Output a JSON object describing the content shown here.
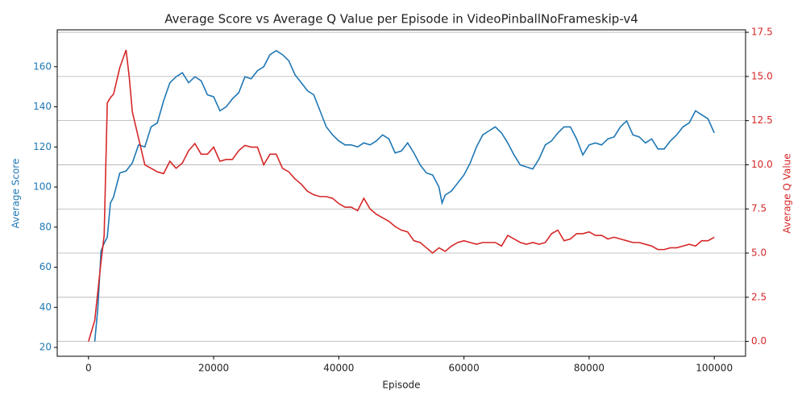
{
  "chart_data": {
    "type": "line",
    "title": "Average Score vs Average Q Value per Episode in VideoPinballNoFrameskip-v4",
    "x_label": "Episode",
    "y_label": "Average Score",
    "y2_label": "Average Q Value",
    "xlim": [
      -5000,
      105000
    ],
    "xticks": [
      0,
      20000,
      40000,
      60000,
      80000,
      100000
    ],
    "ylim": [
      15.6,
      178.4
    ],
    "yticks": [
      20,
      40,
      60,
      80,
      100,
      120,
      140,
      160
    ],
    "y2lim": [
      -0.84,
      17.64
    ],
    "y2ticks": [
      {
        "value": 0,
        "label": "0.0"
      },
      2.5,
      {
        "value": 5,
        "label": "5.0"
      },
      7.5,
      {
        "value": 10,
        "label": "10.0"
      },
      12.5,
      {
        "value": 15,
        "label": "15.0"
      },
      17.5
    ],
    "grid_axis": "y2",
    "series": [
      {
        "name": "Average Score",
        "color": "#1f77b4",
        "x": [
          1000,
          1500,
          2000,
          2500,
          3000,
          3500,
          4000,
          5000,
          6000,
          7000,
          8000,
          9000,
          10000,
          11000,
          12000,
          13000,
          14000,
          15000,
          16000,
          17000,
          18000,
          19000,
          20000,
          21000,
          22000,
          23000,
          24000,
          25000,
          26000,
          27000,
          28000,
          29000,
          30000,
          31000,
          32000,
          33000,
          34000,
          35000,
          36000,
          37000,
          38000,
          39000,
          40000,
          41000,
          42000,
          43000,
          44000,
          45000,
          46000,
          47000,
          48000,
          49000,
          50000,
          51000,
          52000,
          53000,
          54000,
          55000,
          56000,
          56500,
          57000,
          58000,
          59000,
          60000,
          61000,
          62000,
          63000,
          64000,
          65000,
          66000,
          67000,
          68000,
          69000,
          70000,
          71000,
          72000,
          73000,
          74000,
          75000,
          76000,
          77000,
          78000,
          79000,
          80000,
          81000,
          82000,
          83000,
          84000,
          85000,
          86000,
          87000,
          88000,
          89000,
          90000,
          91000,
          92000,
          93000,
          94000,
          95000,
          96000,
          97000,
          98000,
          99000,
          100000
        ],
        "values": [
          23,
          40,
          68,
          72,
          75,
          92,
          95,
          107,
          108,
          112,
          121,
          120,
          130,
          132,
          143,
          152,
          155,
          157,
          152,
          155,
          153,
          146,
          145,
          138,
          140,
          144,
          147,
          155,
          154,
          158,
          160,
          166,
          168,
          166,
          163,
          156,
          152,
          148,
          146,
          138,
          130,
          126,
          123,
          121,
          121,
          120,
          122,
          121,
          123,
          126,
          124,
          117,
          118,
          122,
          117,
          111,
          107,
          106,
          100,
          92,
          96,
          98,
          102,
          106,
          112,
          120,
          126,
          128,
          130,
          127,
          122,
          116,
          111,
          110,
          109,
          114,
          121,
          123,
          127,
          130,
          130,
          124,
          116,
          121,
          122,
          121,
          124,
          125,
          130,
          133,
          126,
          125,
          122,
          124,
          119,
          119,
          123,
          126,
          130,
          132,
          138,
          136,
          134,
          127
        ]
      },
      {
        "name": "Average Q Value",
        "color": "#d62728",
        "axis": "y2",
        "x": [
          0,
          1000,
          2000,
          2500,
          3000,
          3500,
          4000,
          5000,
          6000,
          6500,
          7000,
          8000,
          9000,
          10000,
          11000,
          12000,
          13000,
          14000,
          15000,
          16000,
          17000,
          18000,
          19000,
          20000,
          21000,
          22000,
          23000,
          24000,
          25000,
          26000,
          27000,
          28000,
          29000,
          30000,
          31000,
          32000,
          33000,
          34000,
          35000,
          36000,
          37000,
          38000,
          39000,
          40000,
          41000,
          42000,
          43000,
          44000,
          45000,
          46000,
          47000,
          48000,
          49000,
          50000,
          51000,
          52000,
          53000,
          54000,
          55000,
          56000,
          57000,
          58000,
          59000,
          60000,
          61000,
          62000,
          63000,
          64000,
          65000,
          66000,
          67000,
          68000,
          69000,
          70000,
          71000,
          72000,
          73000,
          74000,
          75000,
          76000,
          77000,
          78000,
          79000,
          80000,
          81000,
          82000,
          83000,
          84000,
          85000,
          86000,
          87000,
          88000,
          89000,
          90000,
          91000,
          92000,
          93000,
          94000,
          95000,
          96000,
          97000,
          98000,
          99000,
          100000
        ],
        "values": [
          0,
          1.2,
          4.5,
          6,
          13.5,
          13.8,
          14,
          15.5,
          16.5,
          15,
          13,
          11.5,
          10,
          9.8,
          9.6,
          9.5,
          10.2,
          9.8,
          10.1,
          10.8,
          11.2,
          10.6,
          10.6,
          11,
          10.2,
          10.3,
          10.3,
          10.8,
          11.1,
          11,
          11,
          10,
          10.6,
          10.6,
          9.8,
          9.6,
          9.2,
          8.9,
          8.5,
          8.3,
          8.2,
          8.2,
          8.1,
          7.8,
          7.6,
          7.6,
          7.4,
          8.1,
          7.5,
          7.2,
          7,
          6.8,
          6.5,
          6.3,
          6.2,
          5.7,
          5.6,
          5.3,
          5,
          5.3,
          5.1,
          5.4,
          5.6,
          5.7,
          5.6,
          5.5,
          5.6,
          5.6,
          5.6,
          5.4,
          6,
          5.8,
          5.6,
          5.5,
          5.6,
          5.5,
          5.6,
          6.1,
          6.3,
          5.7,
          5.8,
          6.1,
          6.1,
          6.2,
          6,
          6,
          5.8,
          5.9,
          5.8,
          5.7,
          5.6,
          5.6,
          5.5,
          5.4,
          5.2,
          5.2,
          5.3,
          5.3,
          5.4,
          5.5,
          5.4,
          5.7,
          5.7,
          5.9
        ]
      }
    ]
  }
}
